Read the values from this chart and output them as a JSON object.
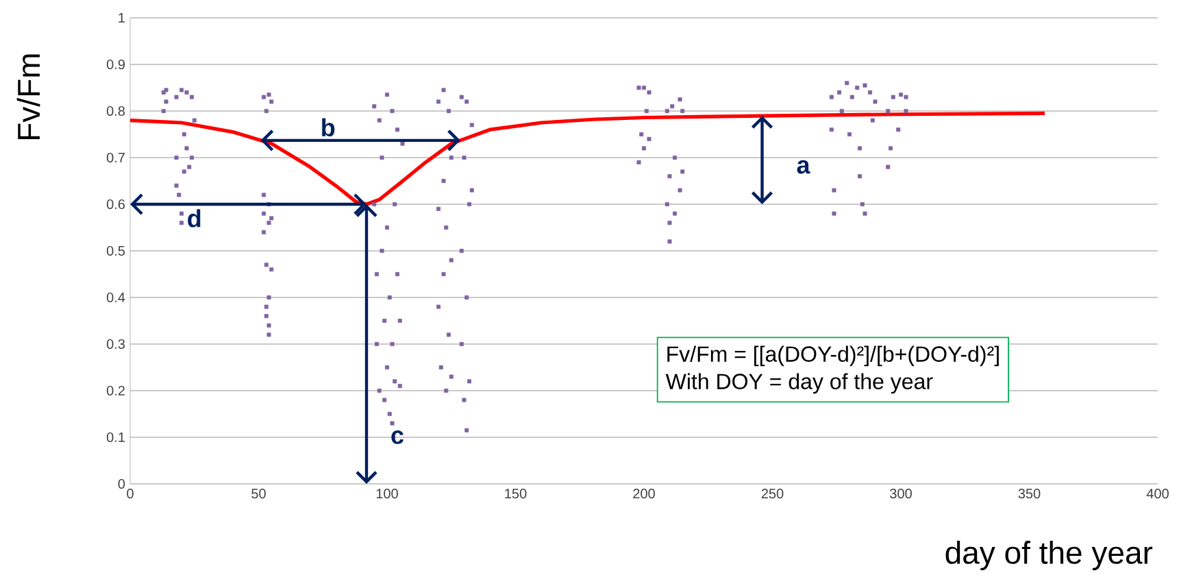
{
  "chart_data": {
    "type": "scatter",
    "xlabel": "day of the year",
    "ylabel": "Fv/Fm",
    "xlim": [
      0,
      400
    ],
    "xticks": [
      0,
      50,
      100,
      150,
      200,
      250,
      300,
      350,
      400
    ],
    "ylim": [
      0,
      1
    ],
    "yticks": [
      0,
      0.1,
      0.2,
      0.3,
      0.4,
      0.5,
      0.6,
      0.7,
      0.8,
      0.9,
      1
    ],
    "grid": "y",
    "series": [
      {
        "marker": "square",
        "color": "#8064a2",
        "x": [
          13,
          13,
          14,
          14,
          18,
          18,
          18,
          19,
          20,
          20,
          20,
          21,
          21,
          22,
          22,
          23,
          24,
          24,
          25,
          52,
          52,
          52,
          52,
          53,
          53,
          53,
          53,
          54,
          54,
          54,
          54,
          54,
          55,
          55,
          54,
          55,
          95,
          95,
          96,
          96,
          97,
          97,
          98,
          98,
          99,
          99,
          100,
          100,
          100,
          101,
          101,
          102,
          102,
          102,
          103,
          103,
          104,
          104,
          105,
          105,
          106,
          120,
          120,
          120,
          121,
          122,
          122,
          122,
          123,
          123,
          124,
          124,
          125,
          125,
          125,
          129,
          129,
          129,
          130,
          130,
          131,
          131,
          131,
          132,
          132,
          133,
          133,
          198,
          198,
          199,
          200,
          200,
          201,
          202,
          202,
          209,
          209,
          210,
          210,
          210,
          211,
          212,
          212,
          214,
          214,
          215,
          215,
          273,
          273,
          274,
          274,
          276,
          277,
          279,
          280,
          281,
          283,
          284,
          284,
          285,
          286,
          286,
          288,
          289,
          290,
          295,
          295,
          296,
          297,
          299,
          300,
          302,
          302
        ],
        "values": [
          0.84,
          0.8,
          0.845,
          0.82,
          0.83,
          0.7,
          0.64,
          0.62,
          0.845,
          0.58,
          0.56,
          0.75,
          0.67,
          0.84,
          0.72,
          0.68,
          0.83,
          0.7,
          0.78,
          0.83,
          0.62,
          0.58,
          0.54,
          0.8,
          0.47,
          0.38,
          0.36,
          0.835,
          0.6,
          0.56,
          0.4,
          0.34,
          0.82,
          0.46,
          0.32,
          0.57,
          0.81,
          0.6,
          0.45,
          0.3,
          0.78,
          0.2,
          0.7,
          0.5,
          0.35,
          0.18,
          0.835,
          0.55,
          0.25,
          0.15,
          0.4,
          0.8,
          0.3,
          0.13,
          0.6,
          0.22,
          0.76,
          0.45,
          0.35,
          0.21,
          0.73,
          0.82,
          0.59,
          0.38,
          0.25,
          0.845,
          0.65,
          0.45,
          0.2,
          0.55,
          0.8,
          0.32,
          0.7,
          0.48,
          0.23,
          0.83,
          0.5,
          0.3,
          0.7,
          0.18,
          0.82,
          0.4,
          0.115,
          0.6,
          0.22,
          0.77,
          0.63,
          0.85,
          0.69,
          0.75,
          0.85,
          0.72,
          0.8,
          0.84,
          0.74,
          0.8,
          0.6,
          0.52,
          0.56,
          0.66,
          0.81,
          0.58,
          0.7,
          0.825,
          0.63,
          0.8,
          0.67,
          0.83,
          0.76,
          0.63,
          0.58,
          0.84,
          0.8,
          0.86,
          0.75,
          0.83,
          0.85,
          0.72,
          0.66,
          0.6,
          0.855,
          0.58,
          0.84,
          0.78,
          0.82,
          0.8,
          0.68,
          0.72,
          0.83,
          0.76,
          0.835,
          0.83,
          0.8
        ]
      },
      {
        "type": "line",
        "color": "#ff0000",
        "x": [
          0,
          20,
          40,
          55,
          70,
          80,
          88,
          92,
          97,
          105,
          115,
          125,
          140,
          160,
          180,
          200,
          250,
          300,
          356
        ],
        "values": [
          0.78,
          0.775,
          0.755,
          0.73,
          0.68,
          0.64,
          0.605,
          0.6,
          0.61,
          0.645,
          0.69,
          0.73,
          0.76,
          0.775,
          0.782,
          0.786,
          0.79,
          0.793,
          0.795
        ]
      }
    ],
    "annotations": [
      "a",
      "b",
      "c",
      "d",
      "Fv/Fm = [[a(DOY-d)²]/[b+(DOY-d)²]",
      "With DOY = day of the year"
    ]
  }
}
